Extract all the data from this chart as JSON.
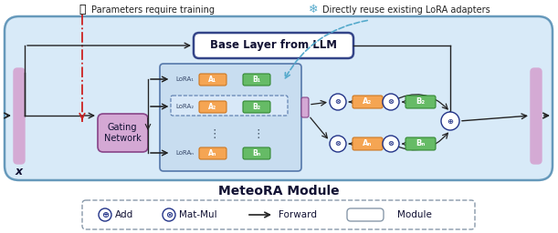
{
  "fig_bg": "#ffffff",
  "main_box_color": "#d8eaf8",
  "main_box_edge": "#6699bb",
  "inner_box_color": "#c8ddf0",
  "inner_box_edge": "#5577aa",
  "lora_selected_color": "#d8e8f8",
  "lora_selected_edge": "#5577aa",
  "base_box_color": "#ffffff",
  "base_box_edge": "#334488",
  "gating_color": "#d4a8d4",
  "gating_edge": "#884488",
  "pink_bar_color": "#d4aad4",
  "pink_bar_edge": "#d4aad4",
  "a_color": "#f5a553",
  "a_edge": "#cc7722",
  "b_color": "#66bb66",
  "b_edge": "#338833",
  "circle_edge": "#223388",
  "arrow_color": "#222222",
  "red_dash": "#cc2222",
  "blue_dash": "#55aacc",
  "title_color": "#111133",
  "title": "MeteoRA Module",
  "fire_label": "Parameters require training",
  "snow_label": "Directly reuse existing LoRA adapters",
  "base_layer_label": "Base Layer from LLM",
  "gating_label": "Gating\nNetwork",
  "x_label": "x"
}
